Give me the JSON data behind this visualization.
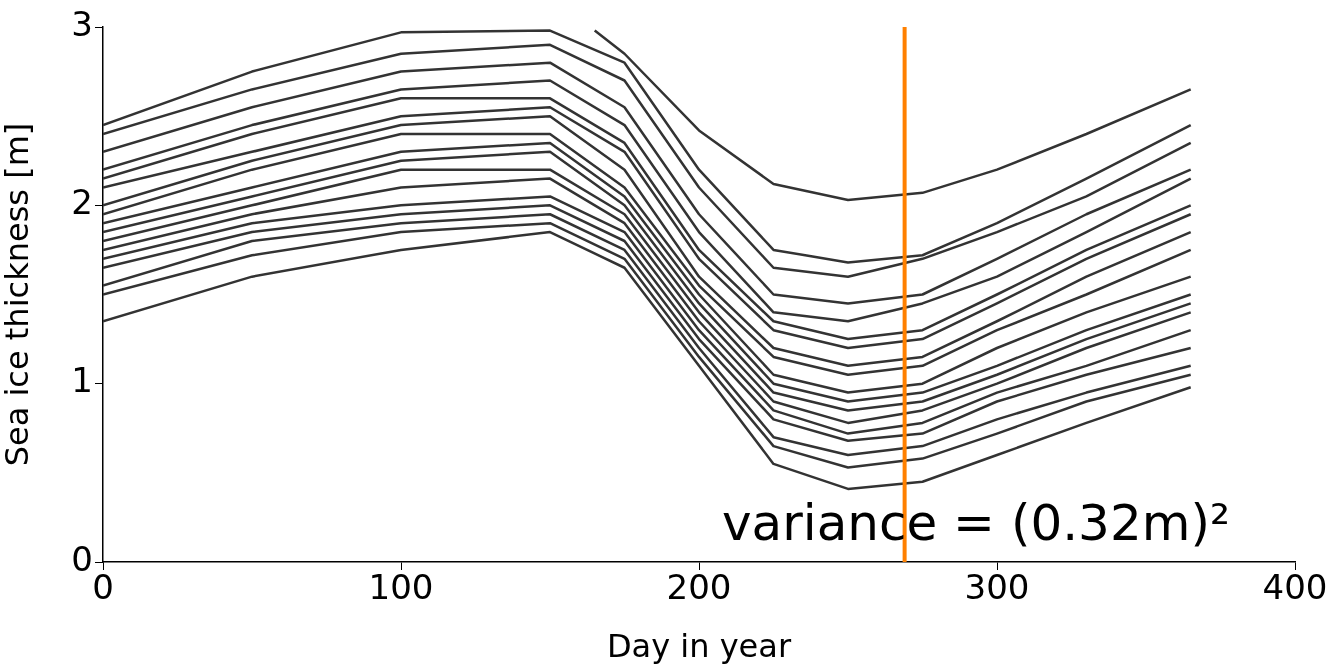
{
  "chart_data": {
    "type": "line",
    "xlabel": "Day in year",
    "ylabel": "Sea ice thickness [m]",
    "x": [
      0,
      50,
      100,
      150,
      175,
      200,
      225,
      250,
      275,
      300,
      330,
      365
    ],
    "xlim": [
      0,
      400
    ],
    "xticks": [
      0,
      100,
      200,
      300,
      400
    ],
    "ylim": [
      0,
      3
    ],
    "yticks": [
      0,
      1,
      2,
      3
    ],
    "grid": false,
    "legend": false,
    "marker": "none",
    "line_style": "solid",
    "ref_lines": [
      {
        "axis": "x",
        "value": 269,
        "color": "#ff8000"
      }
    ],
    "annotations": [
      "variance = (0.32m)²"
    ],
    "series": [
      {
        "color": "#333333",
        "x": [
          165,
          175,
          200,
          225,
          250,
          275,
          300,
          330,
          365
        ],
        "values": [
          2.98,
          2.85,
          2.42,
          2.12,
          2.03,
          2.07,
          2.2,
          2.4,
          2.65
        ]
      },
      {
        "color": "#333333",
        "values": [
          2.45,
          2.75,
          2.97,
          2.98,
          2.8,
          2.2,
          1.75,
          1.68,
          1.72,
          1.9,
          2.15,
          2.45
        ]
      },
      {
        "color": "#333333",
        "values": [
          2.4,
          2.65,
          2.85,
          2.9,
          2.7,
          2.1,
          1.65,
          1.6,
          1.7,
          1.85,
          2.05,
          2.35
        ]
      },
      {
        "color": "#333333",
        "values": [
          2.3,
          2.55,
          2.75,
          2.8,
          2.55,
          1.95,
          1.5,
          1.45,
          1.5,
          1.7,
          1.95,
          2.2
        ]
      },
      {
        "color": "#333333",
        "values": [
          2.2,
          2.45,
          2.65,
          2.7,
          2.45,
          1.85,
          1.4,
          1.35,
          1.45,
          1.6,
          1.85,
          2.15
        ]
      },
      {
        "color": "#333333",
        "values": [
          2.15,
          2.4,
          2.6,
          2.6,
          2.35,
          1.75,
          1.35,
          1.25,
          1.3,
          1.5,
          1.75,
          2.0
        ]
      },
      {
        "color": "#333333",
        "values": [
          2.1,
          2.3,
          2.5,
          2.55,
          2.3,
          1.7,
          1.3,
          1.2,
          1.25,
          1.45,
          1.7,
          1.95
        ]
      },
      {
        "color": "#333333",
        "values": [
          2.0,
          2.25,
          2.45,
          2.5,
          2.2,
          1.6,
          1.2,
          1.1,
          1.15,
          1.35,
          1.6,
          1.85
        ]
      },
      {
        "color": "#333333",
        "values": [
          1.95,
          2.2,
          2.4,
          2.4,
          2.1,
          1.55,
          1.15,
          1.05,
          1.1,
          1.3,
          1.5,
          1.75
        ]
      },
      {
        "color": "#333333",
        "values": [
          1.9,
          2.1,
          2.3,
          2.35,
          2.05,
          1.5,
          1.05,
          0.95,
          1.0,
          1.2,
          1.4,
          1.6
        ]
      },
      {
        "color": "#333333",
        "values": [
          1.85,
          2.05,
          2.25,
          2.3,
          2.0,
          1.45,
          1.0,
          0.9,
          0.95,
          1.1,
          1.3,
          1.5
        ]
      },
      {
        "color": "#333333",
        "values": [
          1.8,
          2.0,
          2.2,
          2.2,
          1.95,
          1.4,
          0.95,
          0.85,
          0.9,
          1.05,
          1.25,
          1.45
        ]
      },
      {
        "color": "#333333",
        "values": [
          1.75,
          1.95,
          2.1,
          2.15,
          1.9,
          1.35,
          0.9,
          0.78,
          0.85,
          1.0,
          1.2,
          1.4
        ]
      },
      {
        "color": "#333333",
        "values": [
          1.7,
          1.9,
          2.0,
          2.05,
          1.85,
          1.3,
          0.85,
          0.72,
          0.78,
          0.95,
          1.1,
          1.3
        ]
      },
      {
        "color": "#333333",
        "values": [
          1.65,
          1.85,
          1.95,
          2.0,
          1.8,
          1.25,
          0.8,
          0.68,
          0.72,
          0.9,
          1.05,
          1.2
        ]
      },
      {
        "color": "#333333",
        "values": [
          1.55,
          1.8,
          1.9,
          1.95,
          1.75,
          1.2,
          0.7,
          0.6,
          0.65,
          0.8,
          0.95,
          1.1
        ]
      },
      {
        "color": "#333333",
        "values": [
          1.5,
          1.72,
          1.85,
          1.9,
          1.7,
          1.15,
          0.65,
          0.53,
          0.58,
          0.72,
          0.9,
          1.05
        ]
      },
      {
        "color": "#333333",
        "values": [
          1.35,
          1.6,
          1.75,
          1.85,
          1.65,
          1.1,
          0.55,
          0.41,
          0.45,
          0.6,
          0.78,
          0.98
        ]
      }
    ]
  }
}
